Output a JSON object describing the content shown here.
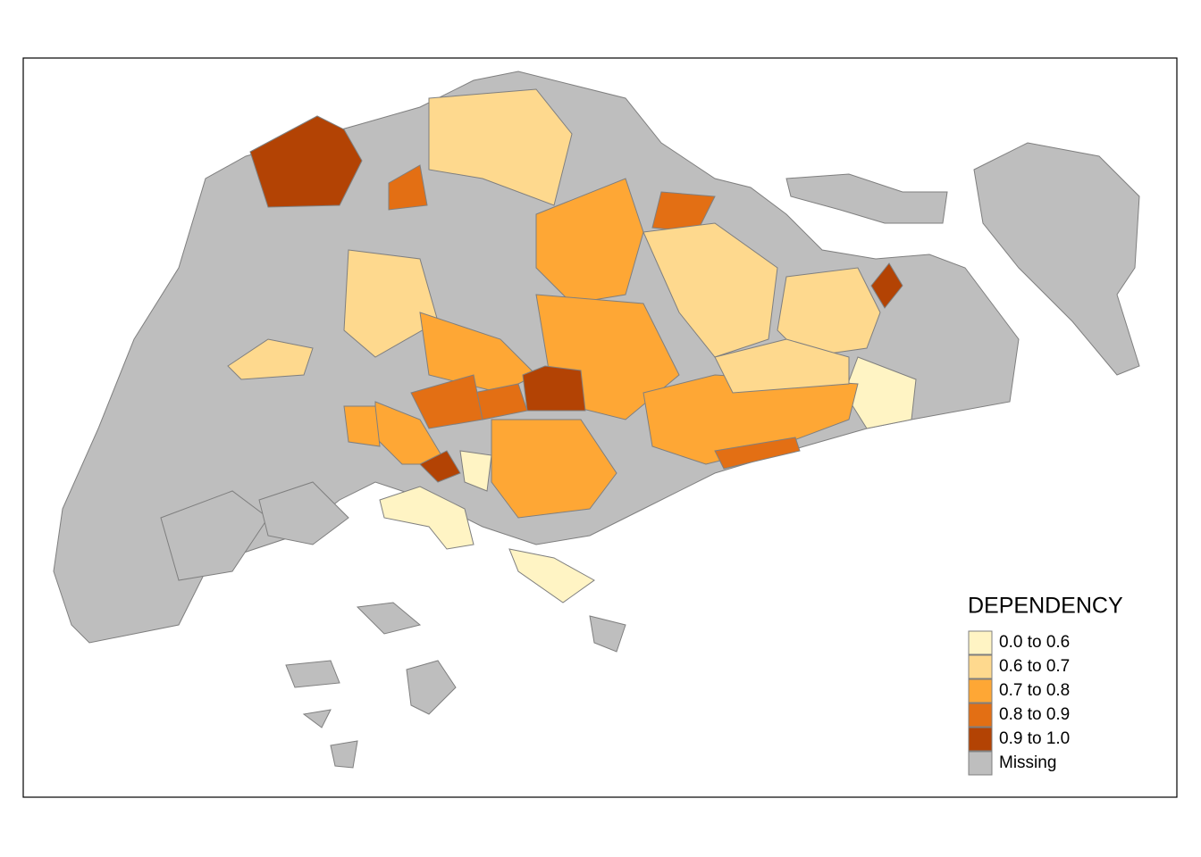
{
  "legend": {
    "title": "DEPENDENCY",
    "items": [
      {
        "label": "0.0 to 0.6",
        "color": "#fff4c4"
      },
      {
        "label": "0.6 to 0.7",
        "color": "#fed98e"
      },
      {
        "label": "0.7 to 0.8",
        "color": "#fea735"
      },
      {
        "label": "0.8 to 0.9",
        "color": "#e36f14"
      },
      {
        "label": "0.9 to 1.0",
        "color": "#b34304"
      },
      {
        "label": "Missing",
        "color": "#bebebe"
      }
    ]
  }
}
